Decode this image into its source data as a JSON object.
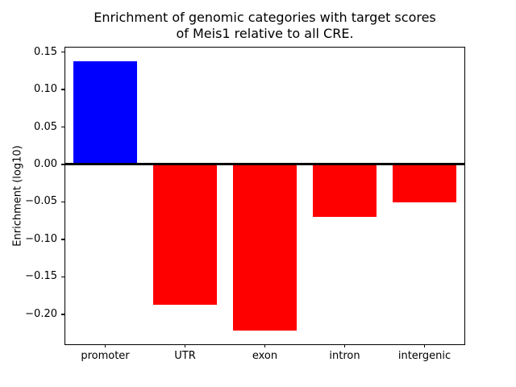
{
  "chart_data": {
    "type": "bar",
    "title_lines": [
      "Enrichment of genomic categories with target scores",
      "of Meis1 relative to all CRE."
    ],
    "xlabel": "",
    "ylabel": "Enrichment (log10)",
    "categories": [
      "promoter",
      "UTR",
      "exon",
      "intron",
      "intergenic"
    ],
    "values": [
      0.138,
      -0.187,
      -0.222,
      -0.07,
      -0.051
    ],
    "bar_colors": [
      "#0000ff",
      "#ff0000",
      "#ff0000",
      "#ff0000",
      "#ff0000"
    ],
    "ylim": [
      -0.24,
      0.156
    ],
    "yticks": [
      0.15,
      0.1,
      0.05,
      0.0,
      -0.05,
      -0.1,
      -0.15,
      -0.2
    ],
    "ytick_labels": [
      "0.15",
      "0.10",
      "0.05",
      "0.00",
      "−0.05",
      "−0.10",
      "−0.15",
      "−0.20"
    ],
    "zero_line": true,
    "grid": false,
    "legend": null,
    "colors": {
      "positive": "#0000ff",
      "negative": "#ff0000",
      "axis": "#000000",
      "background": "#ffffff"
    }
  }
}
